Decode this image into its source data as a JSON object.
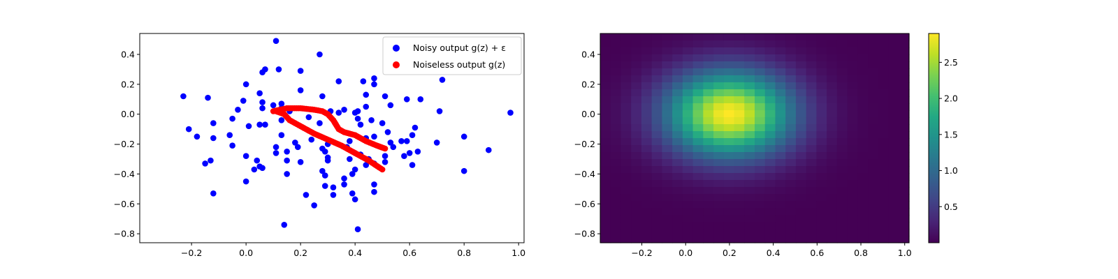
{
  "chart_data": [
    {
      "type": "scatter",
      "panel": "left",
      "title": "",
      "xlabel": "",
      "ylabel": "",
      "xlim": [
        -0.39,
        1.02
      ],
      "ylim": [
        -0.86,
        0.54
      ],
      "xticks": [
        -0.2,
        0.0,
        0.2,
        0.4,
        0.6,
        0.8,
        1.0
      ],
      "xtick_labels": [
        "−0.2",
        "0.0",
        "0.2",
        "0.4",
        "0.6",
        "0.8",
        "1.0"
      ],
      "yticks": [
        -0.8,
        -0.6,
        -0.4,
        -0.2,
        0.0,
        0.2,
        0.4
      ],
      "ytick_labels": [
        "−0.8",
        "−0.6",
        "−0.4",
        "−0.2",
        "0.0",
        "0.2",
        "0.4"
      ],
      "legend_placement": "top-right",
      "grid": false,
      "series": [
        {
          "name": "Noisy output g(z) + ε",
          "color": "#0000ff",
          "points": [
            [
              0.11,
              0.49
            ],
            [
              0.27,
              0.4
            ],
            [
              0.07,
              0.3
            ],
            [
              0.06,
              0.28
            ],
            [
              0.12,
              0.3
            ],
            [
              0.2,
              0.29
            ],
            [
              -0.23,
              0.12
            ],
            [
              -0.14,
              0.11
            ],
            [
              0.0,
              0.2
            ],
            [
              0.05,
              0.14
            ],
            [
              0.2,
              0.16
            ],
            [
              0.28,
              0.12
            ],
            [
              0.34,
              0.22
            ],
            [
              0.43,
              0.22
            ],
            [
              0.47,
              0.24
            ],
            [
              0.47,
              0.2
            ],
            [
              0.44,
              0.13
            ],
            [
              0.51,
              0.12
            ],
            [
              0.72,
              0.23
            ],
            [
              0.59,
              0.1
            ],
            [
              0.64,
              0.1
            ],
            [
              0.53,
              0.06
            ],
            [
              -0.01,
              0.09
            ],
            [
              0.06,
              0.08
            ],
            [
              0.1,
              0.06
            ],
            [
              0.13,
              0.07
            ],
            [
              -0.03,
              0.03
            ],
            [
              0.06,
              0.04
            ],
            [
              0.13,
              0.04
            ],
            [
              0.16,
              0.02
            ],
            [
              0.31,
              0.02
            ],
            [
              0.36,
              0.03
            ],
            [
              0.41,
              0.02
            ],
            [
              0.44,
              0.05
            ],
            [
              0.71,
              0.02
            ],
            [
              0.97,
              0.01
            ],
            [
              -0.21,
              -0.1
            ],
            [
              -0.18,
              -0.15
            ],
            [
              -0.12,
              -0.06
            ],
            [
              -0.05,
              -0.03
            ],
            [
              0.01,
              -0.08
            ],
            [
              0.05,
              -0.07
            ],
            [
              0.07,
              -0.07
            ],
            [
              0.13,
              -0.04
            ],
            [
              0.23,
              -0.02
            ],
            [
              0.27,
              -0.06
            ],
            [
              0.34,
              0.01
            ],
            [
              0.4,
              0.01
            ],
            [
              0.41,
              -0.03
            ],
            [
              0.42,
              -0.07
            ],
            [
              0.46,
              -0.04
            ],
            [
              0.5,
              -0.06
            ],
            [
              0.62,
              -0.09
            ],
            [
              -0.06,
              -0.14
            ],
            [
              -0.12,
              -0.16
            ],
            [
              -0.05,
              -0.21
            ],
            [
              0.13,
              -0.14
            ],
            [
              0.18,
              -0.19
            ],
            [
              0.24,
              -0.17
            ],
            [
              0.3,
              -0.2
            ],
            [
              0.38,
              -0.18
            ],
            [
              0.44,
              -0.16
            ],
            [
              0.47,
              -0.15
            ],
            [
              0.52,
              -0.12
            ],
            [
              0.53,
              -0.19
            ],
            [
              0.54,
              -0.22
            ],
            [
              0.57,
              -0.18
            ],
            [
              0.59,
              -0.18
            ],
            [
              0.61,
              -0.14
            ],
            [
              0.7,
              -0.19
            ],
            [
              0.8,
              -0.15
            ],
            [
              0.89,
              -0.24
            ],
            [
              -0.15,
              -0.33
            ],
            [
              -0.13,
              -0.31
            ],
            [
              0.0,
              -0.28
            ],
            [
              0.04,
              -0.31
            ],
            [
              0.05,
              -0.35
            ],
            [
              0.06,
              -0.36
            ],
            [
              0.03,
              -0.37
            ],
            [
              0.11,
              -0.22
            ],
            [
              0.11,
              -0.26
            ],
            [
              0.15,
              -0.25
            ],
            [
              0.19,
              -0.22
            ],
            [
              0.28,
              -0.23
            ],
            [
              0.29,
              -0.25
            ],
            [
              0.3,
              -0.29
            ],
            [
              0.3,
              -0.31
            ],
            [
              0.37,
              -0.22
            ],
            [
              0.38,
              -0.3
            ],
            [
              0.4,
              -0.26
            ],
            [
              0.42,
              -0.27
            ],
            [
              0.45,
              -0.3
            ],
            [
              0.47,
              -0.33
            ],
            [
              0.51,
              -0.28
            ],
            [
              0.51,
              -0.32
            ],
            [
              0.58,
              -0.28
            ],
            [
              0.6,
              -0.26
            ],
            [
              0.63,
              -0.25
            ],
            [
              0.61,
              -0.34
            ],
            [
              0.15,
              -0.31
            ],
            [
              0.2,
              -0.32
            ],
            [
              0.0,
              -0.45
            ],
            [
              0.15,
              -0.4
            ],
            [
              0.28,
              -0.38
            ],
            [
              0.29,
              -0.41
            ],
            [
              0.36,
              -0.43
            ],
            [
              0.36,
              -0.47
            ],
            [
              0.39,
              -0.4
            ],
            [
              0.4,
              -0.37
            ],
            [
              0.44,
              -0.34
            ],
            [
              0.47,
              -0.47
            ],
            [
              0.47,
              -0.52
            ],
            [
              0.8,
              -0.38
            ],
            [
              -0.12,
              -0.53
            ],
            [
              0.22,
              -0.54
            ],
            [
              0.25,
              -0.61
            ],
            [
              0.29,
              -0.48
            ],
            [
              0.32,
              -0.49
            ],
            [
              0.32,
              -0.54
            ],
            [
              0.39,
              -0.53
            ],
            [
              0.4,
              -0.57
            ],
            [
              0.14,
              -0.74
            ],
            [
              0.41,
              -0.77
            ]
          ]
        },
        {
          "name": "Noiseless output g(z)",
          "color": "#ff0000",
          "curves": [
            [
              [
                0.1,
                0.02
              ],
              [
                0.15,
                0.04
              ],
              [
                0.2,
                0.04
              ],
              [
                0.25,
                0.03
              ],
              [
                0.28,
                0.02
              ],
              [
                0.3,
                0.0
              ],
              [
                0.32,
                -0.04
              ],
              [
                0.34,
                -0.1
              ],
              [
                0.36,
                -0.12
              ],
              [
                0.4,
                -0.14
              ],
              [
                0.44,
                -0.18
              ],
              [
                0.48,
                -0.21
              ],
              [
                0.51,
                -0.23
              ]
            ],
            [
              [
                0.11,
                0.02
              ],
              [
                0.14,
                0.0
              ],
              [
                0.16,
                -0.04
              ],
              [
                0.2,
                -0.08
              ],
              [
                0.25,
                -0.13
              ],
              [
                0.3,
                -0.17
              ],
              [
                0.35,
                -0.21
              ],
              [
                0.4,
                -0.26
              ],
              [
                0.45,
                -0.31
              ],
              [
                0.5,
                -0.37
              ]
            ]
          ]
        }
      ]
    },
    {
      "type": "heatmap",
      "panel": "right",
      "title": "",
      "xlabel": "",
      "ylabel": "",
      "colormap": "viridis",
      "xlim": [
        -0.39,
        1.02
      ],
      "ylim": [
        -0.86,
        0.54
      ],
      "xticks": [
        -0.2,
        0.0,
        0.2,
        0.4,
        0.6,
        0.8,
        1.0
      ],
      "xtick_labels": [
        "−0.2",
        "0.0",
        "0.2",
        "0.4",
        "0.6",
        "0.8",
        "1.0"
      ],
      "yticks": [
        -0.8,
        -0.6,
        -0.4,
        -0.2,
        0.0,
        0.2,
        0.4
      ],
      "ytick_labels": [
        "−0.8",
        "−0.6",
        "−0.4",
        "−0.2",
        "0.0",
        "0.2",
        "0.4"
      ],
      "peak_center": [
        0.2,
        0.0
      ],
      "peak_value": 2.9,
      "spread": [
        0.2,
        0.2
      ],
      "colorbar": {
        "range": [
          0.0,
          2.9
        ],
        "ticks": [
          0.5,
          1.0,
          1.5,
          2.0,
          2.5
        ],
        "tick_labels": [
          "0.5",
          "1.0",
          "1.5",
          "2.0",
          "2.5"
        ]
      },
      "grid": false
    }
  ]
}
